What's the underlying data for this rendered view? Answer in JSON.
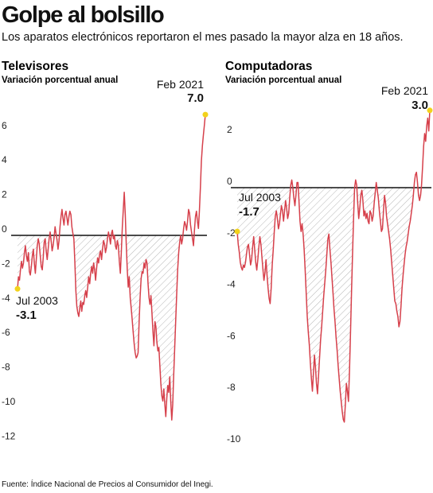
{
  "header": {
    "title": "Golpe al bolsillo",
    "subtitle": "Los aparatos electrónicos reportaron el mes pasado la mayor alza en 18 años."
  },
  "footer": {
    "source": "Fuente: Índice Nacional de Precios al Consumidor del Inegi."
  },
  "colors": {
    "line": "#d6404b",
    "marker": "#f2d21b",
    "zero_line": "#111111",
    "hatch": "#9a9a9a"
  },
  "chart_data": [
    {
      "type": "line",
      "title": "Televisores",
      "subtitle": "Variación porcentual anual",
      "ylim": [
        -12,
        7
      ],
      "yticks": [
        6,
        4,
        2,
        0,
        -2,
        -4,
        -6,
        -8,
        -10,
        -12
      ],
      "ytick_labels": [
        "6",
        "4",
        "2",
        "0",
        "-2",
        "-4",
        "-6",
        "-8",
        "-10",
        "-12"
      ],
      "x_start": "2003-07",
      "x_end": "2021-02",
      "grid": false,
      "shade_below_zero": true,
      "annotations": [
        {
          "date": "Jul 2003",
          "value": "-3.1"
        },
        {
          "date": "Feb 2021",
          "value": "7.0"
        }
      ],
      "series": [
        {
          "values": [
            -3.1,
            -2.4,
            -2.6,
            -2.0,
            -1.5,
            -1.9,
            -1.6,
            -1.0,
            -0.6,
            -1.2,
            -1.5,
            -1.0,
            -2.1,
            -2.3,
            -1.8,
            -1.2,
            -0.8,
            -1.6,
            -2.2,
            -1.4,
            -0.6,
            -0.2,
            -0.5,
            -1.2,
            -1.8,
            -2.0,
            -1.3,
            -0.4,
            -0.2,
            -0.9,
            -1.4,
            -0.8,
            -0.2,
            0.2,
            -0.3,
            -0.9,
            -0.6,
            -0.1,
            0.5,
            0.1,
            -0.3,
            -0.8,
            -0.3,
            0.5,
            1.1,
            1.5,
            1.0,
            0.6,
            1.2,
            1.4,
            1.0,
            0.6,
            1.1,
            1.4,
            1.2,
            0.5,
            0.1,
            -0.2,
            -1.5,
            -3.2,
            -4.1,
            -4.5,
            -4.7,
            -4.2,
            -3.8,
            -4.4,
            -3.9,
            -4.0,
            -3.5,
            -3.2,
            -3.6,
            -3.0,
            -2.4,
            -2.8,
            -2.2,
            -1.8,
            -2.2,
            -1.6,
            -2.0,
            -2.6,
            -1.9,
            -1.3,
            -1.6,
            -1.1,
            -0.9,
            -1.4,
            -0.8,
            -0.3,
            -0.5,
            -1.0,
            -0.7,
            -0.2,
            0.2,
            -0.1,
            -0.5,
            0.1,
            0.3,
            -0.2,
            0.0,
            -0.6,
            -0.8,
            -0.3,
            -0.6,
            -1.5,
            -2.2,
            -1.0,
            0.5,
            1.5,
            2.5,
            1.2,
            -0.5,
            -2.0,
            -3.0,
            -2.4,
            -3.6,
            -4.2,
            -4.9,
            -5.6,
            -6.3,
            -6.8,
            -7.1,
            -7.0,
            -6.8,
            -5.0,
            -3.6,
            -2.5,
            -2.1,
            -2.2,
            -1.6,
            -1.9,
            -1.4,
            -1.6,
            -2.8,
            -3.6,
            -4.0,
            -3.5,
            -4.5,
            -5.6,
            -6.4,
            -5.0,
            -5.3,
            -6.2,
            -6.7,
            -6.5,
            -7.6,
            -8.6,
            -9.3,
            -9.6,
            -8.9,
            -9.8,
            -10.5,
            -9.4,
            -8.7,
            -9.1,
            -8.2,
            -9.6,
            -10.7,
            -9.8,
            -8.0,
            -6.5,
            -5.0,
            -3.4,
            -2.0,
            -1.0,
            -0.4,
            0.0,
            -0.5,
            -0.2,
            0.4,
            0.8,
            0.6,
            0.3,
            0.8,
            1.5,
            1.3,
            0.6,
            0.2,
            -0.2,
            -0.6,
            0.3,
            1.1,
            1.4,
            0.8,
            0.4,
            1.4,
            2.8,
            4.3,
            5.2,
            5.8,
            6.4,
            7.0
          ]
        }
      ]
    },
    {
      "type": "line",
      "title": "Computadoras",
      "subtitle": "Variación porcentual anual",
      "ylim": [
        -10,
        3
      ],
      "yticks": [
        2,
        0,
        -2,
        -4,
        -6,
        -8,
        -10
      ],
      "ytick_labels": [
        "2",
        "0",
        "-2",
        "-4",
        "-6",
        "-8",
        "-10"
      ],
      "x_start": "2003-07",
      "x_end": "2021-02",
      "grid": false,
      "shade_below_zero": true,
      "annotations": [
        {
          "date": "Jul 2003",
          "value": "-1.7"
        },
        {
          "date": "Feb 2021",
          "value": "3.0"
        }
      ],
      "series": [
        {
          "values": [
            -1.7,
            -2.2,
            -2.5,
            -2.9,
            -3.1,
            -3.2,
            -3.0,
            -3.1,
            -2.9,
            -2.6,
            -2.3,
            -2.2,
            -2.6,
            -3.0,
            -2.8,
            -2.3,
            -1.9,
            -2.4,
            -2.9,
            -3.2,
            -2.8,
            -2.3,
            -1.9,
            -2.2,
            -2.7,
            -3.2,
            -3.6,
            -3.3,
            -2.8,
            -3.4,
            -3.9,
            -4.3,
            -4.5,
            -3.9,
            -3.0,
            -2.4,
            -1.7,
            -1.1,
            -0.9,
            -1.2,
            -1.6,
            -1.4,
            -1.0,
            -0.7,
            -0.9,
            -1.3,
            -0.9,
            -0.5,
            -0.8,
            -1.2,
            -1.0,
            -0.4,
            0.1,
            0.3,
            0.0,
            -0.4,
            -0.7,
            -0.3,
            0.2,
            0.2,
            -0.5,
            -1.3,
            -1.7,
            -1.4,
            -1.8,
            -2.4,
            -3.2,
            -4.1,
            -5.0,
            -5.6,
            -6.1,
            -6.8,
            -7.4,
            -7.9,
            -7.2,
            -6.5,
            -7.0,
            -7.6,
            -8.0,
            -7.3,
            -6.6,
            -5.9,
            -5.4,
            -4.8,
            -4.2,
            -3.7,
            -3.2,
            -2.6,
            -2.0,
            -1.8,
            -2.4,
            -2.9,
            -3.5,
            -4.1,
            -4.7,
            -5.2,
            -5.8,
            -6.3,
            -6.9,
            -7.4,
            -7.9,
            -8.3,
            -8.7,
            -9.0,
            -9.1,
            -8.4,
            -7.6,
            -7.9,
            -8.3,
            -7.1,
            -5.6,
            -4.1,
            -2.6,
            -1.2,
            0.0,
            0.3,
            0.1,
            -0.6,
            -1.2,
            -0.8,
            -0.3,
            -0.1,
            -0.5,
            -1.1,
            -0.9,
            -1.2,
            -1.0,
            -1.3,
            -1.4,
            -0.9,
            -1.0,
            -1.3,
            -1.1,
            -0.6,
            -0.2,
            0.2,
            -0.1,
            -0.4,
            -0.9,
            -1.3,
            -1.7,
            -1.6,
            -0.9,
            -0.3,
            -0.6,
            -1.1,
            -1.4,
            -1.7,
            -2.0,
            -2.4,
            -2.9,
            -3.4,
            -3.9,
            -4.4,
            -4.5,
            -4.8,
            -5.0,
            -5.4,
            -5.2,
            -4.6,
            -3.9,
            -3.4,
            -3.0,
            -2.6,
            -2.3,
            -2.1,
            -1.8,
            -1.5,
            -1.3,
            -1.0,
            -0.7,
            -0.3,
            0.2,
            0.5,
            0.6,
            0.2,
            -0.3,
            -0.5,
            -0.3,
            0.1,
            0.8,
            1.6,
            2.1,
            1.8,
            2.4,
            2.7,
            2.2,
            3.0
          ]
        }
      ]
    }
  ]
}
